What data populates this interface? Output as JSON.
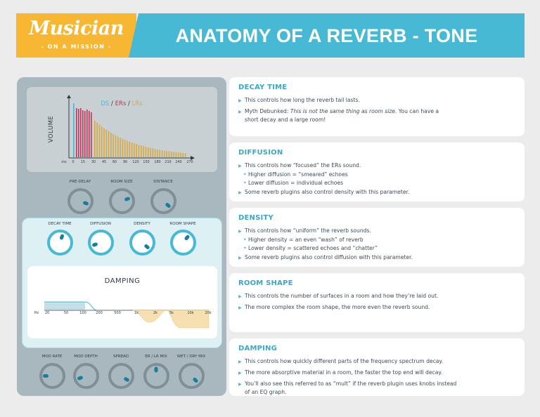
{
  "header": {
    "logo_main": "Musician",
    "logo_sub": "- ON A MISSION -",
    "title": "ANATOMY OF A REVERB - TONE"
  },
  "plugin": {
    "visualizer": {
      "legend": {
        "ds": "DS",
        "sep1": " / ",
        "ers": "ERs",
        "sep2": " / ",
        "lrs": "LRs"
      },
      "ylabel": "VOLUME",
      "x_ticks": [
        "ms",
        "0",
        "15",
        "30",
        "45",
        "60",
        "90",
        "120",
        "150",
        "180",
        "210",
        "240",
        "270"
      ],
      "colors": {
        "ds": "#48b9d4",
        "ers": "#c0335c",
        "lrs": "#d9a93c"
      }
    },
    "top_knobs": [
      {
        "label": "PRE-DELAY"
      },
      {
        "label": "ROOM SIZE"
      },
      {
        "label": "DISTANCE"
      }
    ],
    "tone_knobs": [
      {
        "label": "DECAY TIME"
      },
      {
        "label": "DIFFUSION"
      },
      {
        "label": "DENSITY"
      },
      {
        "label": "ROOM SHAPE"
      }
    ],
    "damping": {
      "title": "DAMPING",
      "x_ticks": [
        "Hz",
        "20",
        "50",
        "100",
        "200",
        "500",
        "1k",
        "2k",
        "5k",
        "10k",
        "20k"
      ]
    },
    "bottom_knobs": [
      {
        "label": "MOD RATE"
      },
      {
        "label": "MOD DEPTH"
      },
      {
        "label": "SPREAD"
      },
      {
        "label": "ER / LR MIX"
      },
      {
        "label": "WET / DRY MIX"
      }
    ]
  },
  "cards": [
    {
      "title": "DECAY TIME",
      "lines": [
        {
          "text": "This controls how long the reverb tail lasts."
        },
        {
          "prefix": "Myth Debunked: ",
          "em": "This is not the same thing as room size.",
          "text": " You can have a",
          "cont": "short decay and a large room!"
        }
      ]
    },
    {
      "title": "DIFFUSION",
      "lines": [
        {
          "text": "This controls how “focused” the ERs sound."
        },
        {
          "sub": "Higher diffusion = “smeared” echoes"
        },
        {
          "sub": "Lower diffusion = individual echoes"
        },
        {
          "text": "Some reverb plugins also control density with this parameter."
        }
      ]
    },
    {
      "title": "DENSITY",
      "lines": [
        {
          "text": "This controls how “uniform” the reverb sounds."
        },
        {
          "sub": "Higher density = an even “wash” of reverb"
        },
        {
          "sub": "Lower density = scattered echoes and “chatter”"
        },
        {
          "text": "Some reverb plugins also control diffusion with this parameter."
        }
      ]
    },
    {
      "title": "ROOM SHAPE",
      "lines": [
        {
          "text": "This controls the number of surfaces in a room and how they’re laid out."
        },
        {
          "text": "The more complex the room shape, the more even the reverb sound."
        }
      ]
    },
    {
      "title": "DAMPING",
      "lines": [
        {
          "text": "This controls how quickly different parts of the frequency spectrum decay."
        },
        {
          "text": "The more absorptive material in a room, the faster the top end will decay."
        },
        {
          "text": "You’ll also see this referred to as “mult” if the reverb plugin uses knobs instead",
          "cont": "of an EQ graph."
        }
      ]
    }
  ]
}
